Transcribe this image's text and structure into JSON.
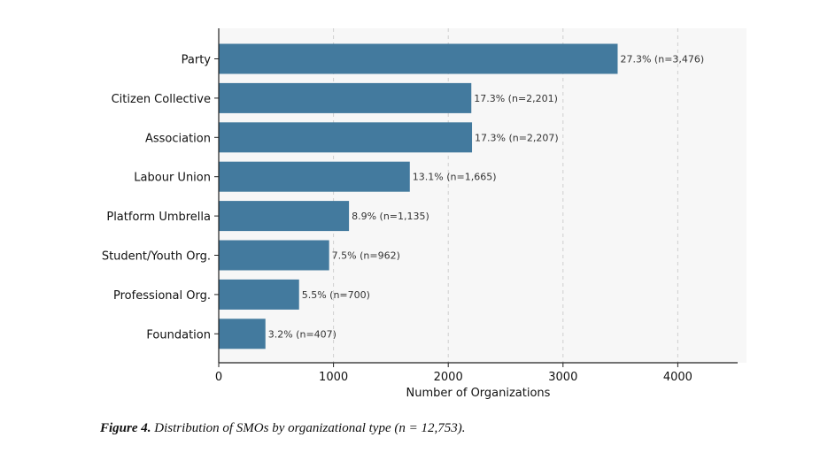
{
  "chart_data": {
    "type": "bar",
    "orientation": "horizontal",
    "categories": [
      "Party",
      "Citizen Collective",
      "Association",
      "Labour Union",
      "Platform Umbrella",
      "Student/Youth Org.",
      "Professional Org.",
      "Foundation"
    ],
    "values": [
      3476,
      2201,
      2207,
      1665,
      1135,
      962,
      700,
      407
    ],
    "data_labels": [
      "27.3%  (n=3,476)",
      "17.3%  (n=2,201)",
      "17.3%  (n=2,207)",
      "13.1%  (n=1,665)",
      "8.9%  (n=1,135)",
      "7.5%  (n=962)",
      "5.5%  (n=700)",
      "3.2%  (n=407)"
    ],
    "xlabel": "Number of Organizations",
    "ylabel": "",
    "xlim": [
      0,
      4500
    ],
    "xticks": [
      0,
      1000,
      2000,
      3000,
      4000
    ],
    "grid": "vertical dashed",
    "bar_color": "#437a9e"
  },
  "caption": {
    "label": "Figure 4.",
    "text": "Distribution of SMOs by organizational type (n = 12,753)."
  }
}
